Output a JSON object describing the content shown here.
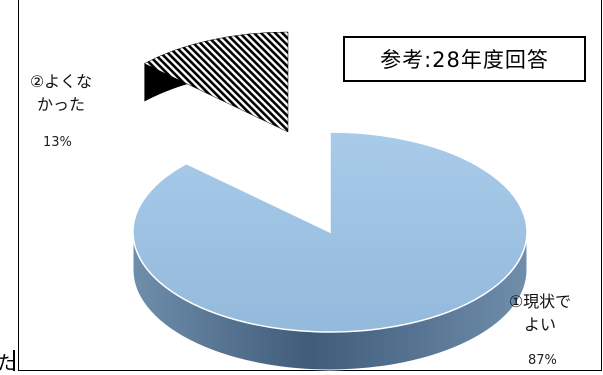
{
  "reference_note": "参考:28年度回答",
  "stray_text": "た",
  "chart_data": {
    "type": "pie",
    "title": "",
    "categories": [
      "①現状でよい",
      "②よくなかった"
    ],
    "values": [
      87,
      13
    ],
    "series": [
      {
        "name": "",
        "values": [
          87,
          13
        ]
      }
    ],
    "slices": [
      {
        "label_lines": [
          "①現状で",
          "よい"
        ],
        "percent_label": "87%",
        "value": 87,
        "color": "#9dc3e6",
        "pattern": "solid"
      },
      {
        "label_lines": [
          "②よくな",
          "かった"
        ],
        "percent_label": "13%",
        "value": 13,
        "color": "#000000",
        "pattern": "diagonal-stripes",
        "exploded": true
      }
    ],
    "legend": "none",
    "style": "3d-exploded"
  }
}
